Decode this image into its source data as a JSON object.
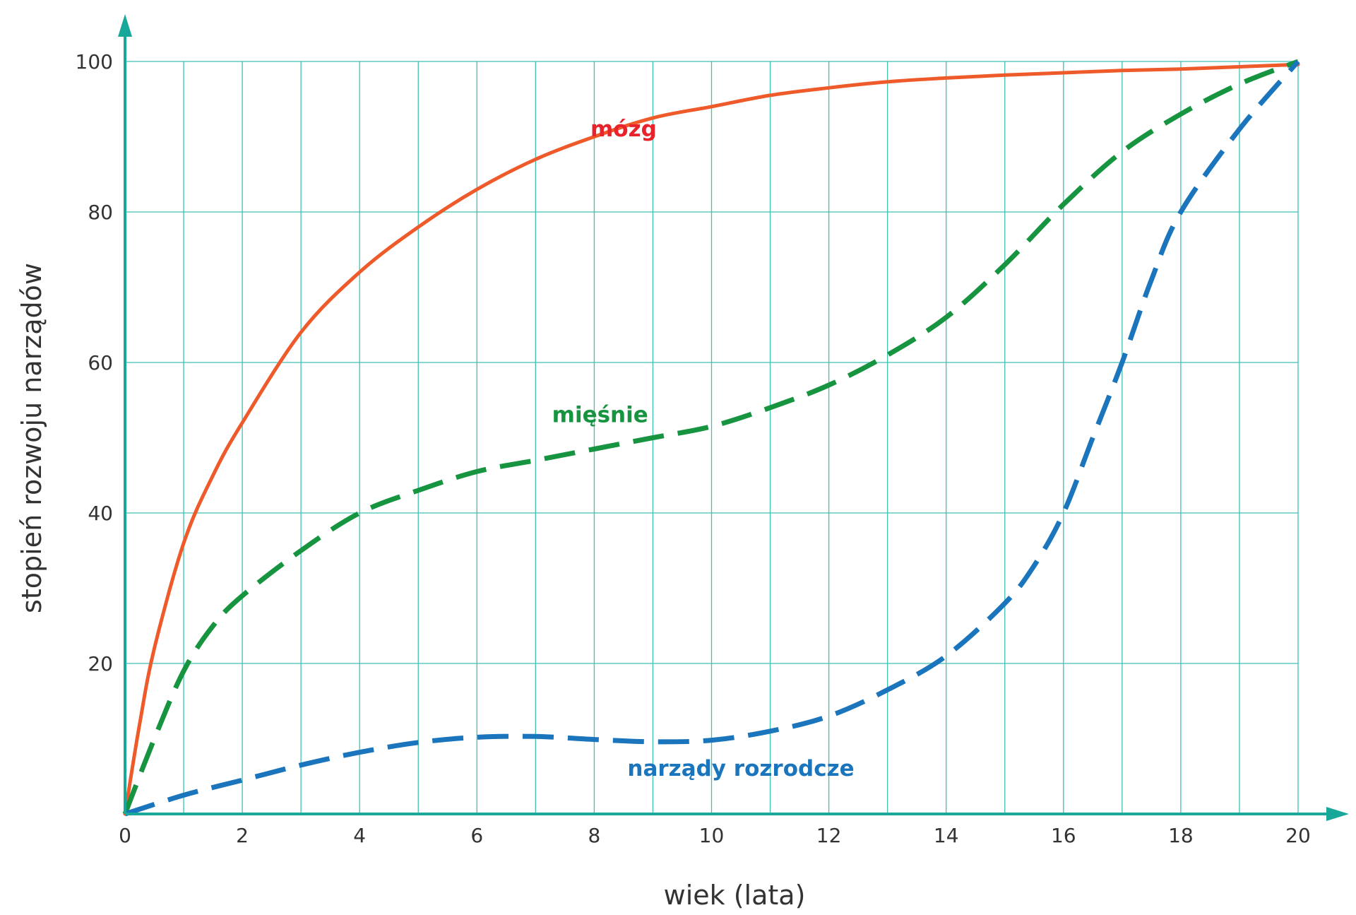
{
  "chart_data": {
    "type": "line",
    "title": "",
    "xlabel": "wiek (lata)",
    "ylabel": "stopień rozwoju narządów",
    "xlim": [
      0,
      20
    ],
    "ylim": [
      0,
      100
    ],
    "x_ticks": [
      "0",
      "2",
      "4",
      "6",
      "8",
      "10",
      "12",
      "14",
      "16",
      "18",
      "20"
    ],
    "y_ticks": [
      "20",
      "40",
      "60",
      "80",
      "100"
    ],
    "grid": true,
    "axis_color": "#17a89a",
    "grid_color": "#3fc1b3",
    "series": [
      {
        "name": "mózg",
        "color": "#ee5a2a",
        "label_color": "#e8232b",
        "style": "solid",
        "x": [
          0,
          0.25,
          0.5,
          1,
          1.5,
          2,
          3,
          4,
          5,
          6,
          7,
          8,
          9,
          10,
          11,
          12,
          13,
          14,
          15,
          16,
          17,
          18,
          19,
          20
        ],
        "y": [
          0,
          12,
          22,
          36,
          45,
          52,
          64,
          72,
          78,
          83,
          87,
          90,
          92.5,
          94,
          95.5,
          96.5,
          97.3,
          97.8,
          98.2,
          98.5,
          98.8,
          99,
          99.3,
          99.6
        ]
      },
      {
        "name": "mięśnie",
        "color": "#17943f",
        "label_color": "#17943f",
        "style": "dashed",
        "x": [
          0,
          0.5,
          1,
          1.5,
          2,
          3,
          4,
          5,
          6,
          7,
          8,
          9,
          10,
          11,
          12,
          13,
          14,
          15,
          16,
          17,
          18,
          19,
          20
        ],
        "y": [
          0,
          10,
          19,
          25,
          29,
          35,
          40,
          43,
          45.5,
          47,
          48.5,
          50,
          51.5,
          54,
          57,
          61,
          66,
          73,
          81,
          88,
          93,
          97,
          100
        ]
      },
      {
        "name": "narządy rozrodcze",
        "color": "#1a75bc",
        "label_color": "#1a75bc",
        "style": "dashed",
        "x": [
          0,
          1,
          2,
          3,
          4,
          5,
          6,
          7,
          8,
          9,
          10,
          11,
          12,
          13,
          14,
          15,
          15.5,
          16,
          16.5,
          17,
          17.5,
          18,
          19,
          20
        ],
        "y": [
          0,
          2.5,
          4.5,
          6.5,
          8.2,
          9.5,
          10.2,
          10.3,
          9.9,
          9.6,
          9.8,
          11,
          13,
          16.5,
          21,
          28,
          33,
          40,
          50,
          60,
          71,
          80,
          91,
          100
        ]
      }
    ]
  }
}
